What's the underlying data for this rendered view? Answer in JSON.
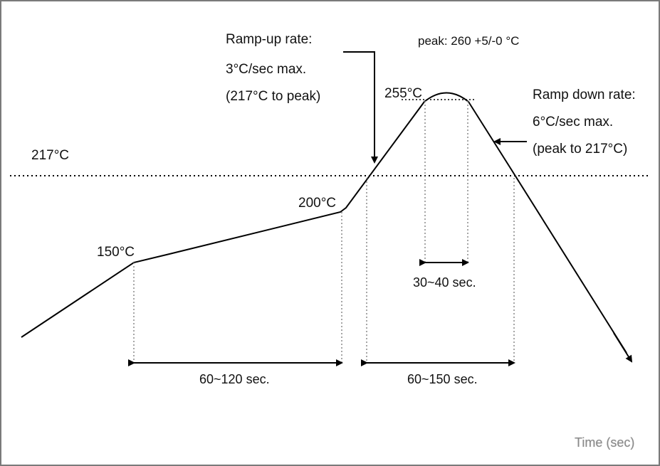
{
  "profile": {
    "liquidus_line_label": "217°C",
    "preheat_start_label": "150°C",
    "preheat_end_label": "200°C",
    "near_peak_label": "255°C",
    "peak_label": "peak: 260 +5/-0 °C",
    "ramp_up": {
      "line1": "Ramp-up rate:",
      "line2": "3°C/sec max.",
      "line3": "(217°C to peak)"
    },
    "ramp_down": {
      "line1": "Ramp down rate:",
      "line2": "6°C/sec max.",
      "line3": "(peak to 217°C)"
    },
    "soak_duration_label": "60~120 sec.",
    "above_liquidus_duration_label": "60~150 sec.",
    "peak_duration_label": "30~40 sec.",
    "x_axis_label": "Time (sec)"
  }
}
